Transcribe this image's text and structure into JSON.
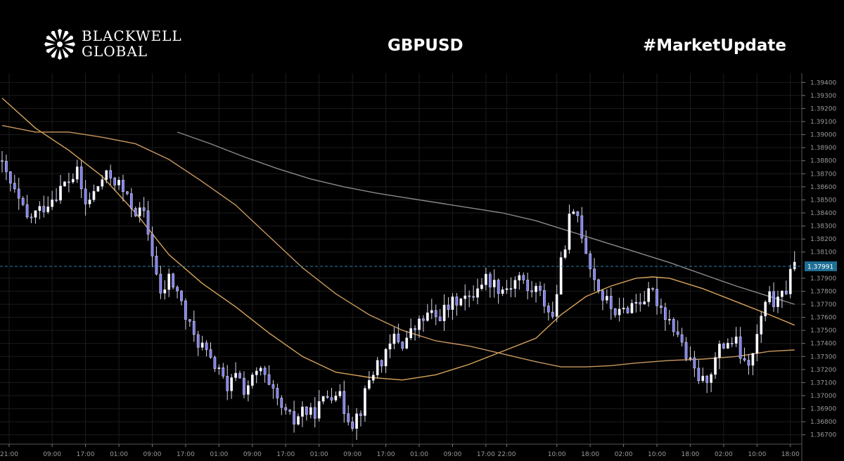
{
  "header": {
    "brand_line1": "BLACKWELL",
    "brand_line2": "GLOBAL",
    "symbol": "GBPUSD",
    "hashtag": "#MarketUpdate"
  },
  "chart_data": {
    "type": "candlestick",
    "symbol": "GBPUSD",
    "y_ticks": [
      "1.39400",
      "1.39300",
      "1.39200",
      "1.39100",
      "1.39000",
      "1.38900",
      "1.38800",
      "1.38700",
      "1.38600",
      "1.38500",
      "1.38400",
      "1.38300",
      "1.38200",
      "1.38100",
      "1.37900",
      "1.37800",
      "1.37700",
      "1.37600",
      "1.37500",
      "1.37400",
      "1.37300",
      "1.37200",
      "1.37100",
      "1.37000",
      "1.36900",
      "1.36800",
      "1.36700"
    ],
    "ylim": [
      1.3665,
      1.3945
    ],
    "x_ticks": [
      {
        "label": "21:00",
        "index": 0
      },
      {
        "label": "09:00",
        "index": 12
      },
      {
        "label": "17:00",
        "index": 20
      },
      {
        "label": "01:00",
        "index": 28
      },
      {
        "label": "09:00",
        "index": 36
      },
      {
        "label": "17:00",
        "index": 44
      },
      {
        "label": "01:00",
        "index": 52
      },
      {
        "label": "09:00",
        "index": 60
      },
      {
        "label": "17:00",
        "index": 68
      },
      {
        "label": "01:00",
        "index": 76
      },
      {
        "label": "09:00",
        "index": 84
      },
      {
        "label": "17:00",
        "index": 92
      },
      {
        "label": "01:00",
        "index": 100
      },
      {
        "label": "09:00",
        "index": 108
      },
      {
        "label": "17:00",
        "index": 116
      },
      {
        "label": "22:00",
        "index": 121
      },
      {
        "label": "10:00",
        "index": 133
      },
      {
        "label": "18:00",
        "index": 141
      },
      {
        "label": "02:00",
        "index": 149
      },
      {
        "label": "10:00",
        "index": 157
      },
      {
        "label": "18:00",
        "index": 165
      },
      {
        "label": "02:00",
        "index": 173
      },
      {
        "label": "10:00",
        "index": 181
      },
      {
        "label": "18:00",
        "index": 189
      }
    ],
    "current_price": 1.37991,
    "current_price_label": "1.37991",
    "grid": true,
    "anchors": [
      [
        0,
        1.3875
      ],
      [
        3,
        1.3855
      ],
      [
        6,
        1.3835
      ],
      [
        9,
        1.3842
      ],
      [
        12,
        1.3852
      ],
      [
        15,
        1.3862
      ],
      [
        18,
        1.387
      ],
      [
        20,
        1.3846
      ],
      [
        22,
        1.3855
      ],
      [
        24,
        1.3866
      ],
      [
        26,
        1.3868
      ],
      [
        28,
        1.3862
      ],
      [
        30,
        1.385
      ],
      [
        32,
        1.3842
      ],
      [
        34,
        1.3838
      ],
      [
        36,
        1.381
      ],
      [
        38,
        1.3775
      ],
      [
        40,
        1.379
      ],
      [
        42,
        1.378
      ],
      [
        44,
        1.376
      ],
      [
        46,
        1.3745
      ],
      [
        48,
        1.3738
      ],
      [
        50,
        1.3725
      ],
      [
        52,
        1.3722
      ],
      [
        54,
        1.37
      ],
      [
        56,
        1.372
      ],
      [
        58,
        1.3705
      ],
      [
        60,
        1.3712
      ],
      [
        62,
        1.372
      ],
      [
        64,
        1.3705
      ],
      [
        66,
        1.3695
      ],
      [
        68,
        1.3685
      ],
      [
        70,
        1.368
      ],
      [
        72,
        1.369
      ],
      [
        74,
        1.3685
      ],
      [
        76,
        1.3692
      ],
      [
        78,
        1.37
      ],
      [
        80,
        1.3705
      ],
      [
        82,
        1.369
      ],
      [
        84,
        1.368
      ],
      [
        86,
        1.369
      ],
      [
        88,
        1.3712
      ],
      [
        90,
        1.3725
      ],
      [
        92,
        1.373
      ],
      [
        94,
        1.3745
      ],
      [
        96,
        1.374
      ],
      [
        98,
        1.3748
      ],
      [
        100,
        1.3755
      ],
      [
        102,
        1.3762
      ],
      [
        104,
        1.376
      ],
      [
        106,
        1.3765
      ],
      [
        108,
        1.377
      ],
      [
        110,
        1.3778
      ],
      [
        112,
        1.3772
      ],
      [
        114,
        1.3785
      ],
      [
        116,
        1.379
      ],
      [
        118,
        1.3786
      ],
      [
        120,
        1.3782
      ],
      [
        122,
        1.3785
      ],
      [
        124,
        1.3792
      ],
      [
        126,
        1.378
      ],
      [
        128,
        1.3782
      ],
      [
        130,
        1.3772
      ],
      [
        132,
        1.376
      ],
      [
        134,
        1.38
      ],
      [
        136,
        1.3835
      ],
      [
        138,
        1.3838
      ],
      [
        140,
        1.3812
      ],
      [
        142,
        1.379
      ],
      [
        144,
        1.3775
      ],
      [
        146,
        1.3768
      ],
      [
        148,
        1.3762
      ],
      [
        150,
        1.3768
      ],
      [
        152,
        1.3772
      ],
      [
        154,
        1.3775
      ],
      [
        156,
        1.3778
      ],
      [
        158,
        1.3768
      ],
      [
        160,
        1.3758
      ],
      [
        162,
        1.3748
      ],
      [
        164,
        1.373
      ],
      [
        166,
        1.3718
      ],
      [
        168,
        1.371
      ],
      [
        170,
        1.372
      ],
      [
        172,
        1.3735
      ],
      [
        174,
        1.3742
      ],
      [
        176,
        1.374
      ],
      [
        178,
        1.3722
      ],
      [
        180,
        1.373
      ],
      [
        182,
        1.376
      ],
      [
        184,
        1.3775
      ],
      [
        186,
        1.377
      ],
      [
        188,
        1.3782
      ],
      [
        189,
        1.3799
      ]
    ],
    "series": [
      {
        "type": "ma",
        "color": "#d8a55a",
        "points": [
          [
            0,
            1.3928
          ],
          [
            8,
            1.3905
          ],
          [
            16,
            1.3888
          ],
          [
            24,
            1.3868
          ],
          [
            32,
            1.384
          ],
          [
            40,
            1.3808
          ],
          [
            48,
            1.3786
          ],
          [
            56,
            1.3768
          ],
          [
            64,
            1.3748
          ],
          [
            72,
            1.373
          ],
          [
            80,
            1.3718
          ],
          [
            88,
            1.3714
          ],
          [
            96,
            1.3712
          ],
          [
            104,
            1.3716
          ],
          [
            112,
            1.3724
          ],
          [
            120,
            1.3734
          ],
          [
            128,
            1.3744
          ],
          [
            134,
            1.3762
          ],
          [
            140,
            1.3776
          ],
          [
            146,
            1.3784
          ],
          [
            152,
            1.379
          ],
          [
            156,
            1.3791
          ],
          [
            160,
            1.379
          ],
          [
            168,
            1.3782
          ],
          [
            176,
            1.3772
          ],
          [
            184,
            1.3762
          ],
          [
            190,
            1.3754
          ]
        ]
      },
      {
        "type": "ma",
        "color": "#c89860",
        "points": [
          [
            0,
            1.3907
          ],
          [
            8,
            1.3902
          ],
          [
            16,
            1.3902
          ],
          [
            24,
            1.3898
          ],
          [
            32,
            1.3893
          ],
          [
            40,
            1.3881
          ],
          [
            48,
            1.3864
          ],
          [
            56,
            1.3846
          ],
          [
            64,
            1.3822
          ],
          [
            72,
            1.3798
          ],
          [
            80,
            1.3778
          ],
          [
            88,
            1.3762
          ],
          [
            96,
            1.375
          ],
          [
            104,
            1.3742
          ],
          [
            112,
            1.3738
          ],
          [
            120,
            1.3732
          ],
          [
            128,
            1.3726
          ],
          [
            134,
            1.3722
          ],
          [
            140,
            1.3722
          ],
          [
            146,
            1.3723
          ],
          [
            152,
            1.3725
          ],
          [
            160,
            1.3727
          ],
          [
            168,
            1.3728
          ],
          [
            176,
            1.373
          ],
          [
            184,
            1.3734
          ],
          [
            190,
            1.3735
          ]
        ]
      },
      {
        "type": "ma",
        "color": "#8a8a8a",
        "points": [
          [
            42,
            1.3902
          ],
          [
            50,
            1.3893
          ],
          [
            58,
            1.3883
          ],
          [
            66,
            1.3874
          ],
          [
            74,
            1.3866
          ],
          [
            82,
            1.386
          ],
          [
            90,
            1.3855
          ],
          [
            98,
            1.3851
          ],
          [
            106,
            1.3847
          ],
          [
            114,
            1.3843
          ],
          [
            120,
            1.384
          ],
          [
            128,
            1.3834
          ],
          [
            136,
            1.3826
          ],
          [
            144,
            1.3818
          ],
          [
            152,
            1.381
          ],
          [
            160,
            1.3802
          ],
          [
            168,
            1.3793
          ],
          [
            176,
            1.3784
          ],
          [
            184,
            1.3776
          ],
          [
            190,
            1.377
          ]
        ]
      }
    ]
  }
}
